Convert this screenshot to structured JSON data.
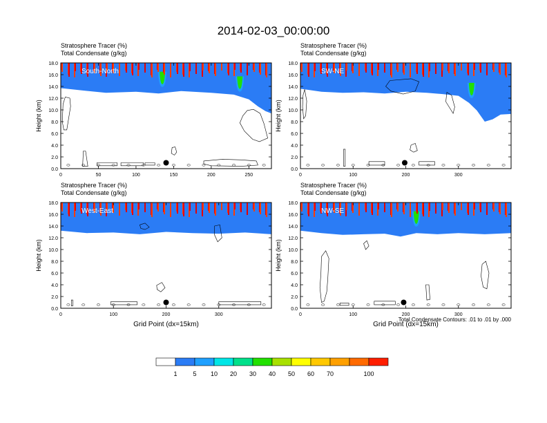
{
  "chart_data": {
    "title": "2014-02-03_00:00:00",
    "type": "heatmap",
    "footnote": "Total Condensate Contours: .01 to .01 by .000",
    "colorbar": {
      "colors": [
        "#ffffff",
        "#2b7cf5",
        "#1fa0ff",
        "#00e6e6",
        "#00e08a",
        "#22e000",
        "#a8e000",
        "#ffff00",
        "#ffc800",
        "#ffa000",
        "#ff6a00",
        "#ff1e00"
      ],
      "labels": [
        "1",
        "5",
        "10",
        "20",
        "30",
        "40",
        "50",
        "60",
        "70",
        "100"
      ]
    },
    "panels": [
      {
        "label": "South-North",
        "line1": "Stratosphere Tracer   (%)",
        "line2": "Total Condensate   (g/kg)",
        "ylabel": "Height (km)",
        "xlabel": "",
        "xmax": 280,
        "xticks": [
          0,
          50,
          100,
          150,
          200,
          250
        ],
        "yticks": [
          "0.0",
          "2.0",
          "4.0",
          "6.0",
          "8.0",
          "10.0",
          "12.0",
          "14.0",
          "16.0",
          "18.0"
        ],
        "marker_x": 140,
        "marker_y": 1.0,
        "tropopause": [
          [
            0,
            16.1
          ],
          [
            30,
            15.7
          ],
          [
            60,
            15.3
          ],
          [
            100,
            15.5
          ],
          [
            130,
            15.2
          ],
          [
            160,
            15.6
          ],
          [
            200,
            15.3
          ],
          [
            230,
            15.0
          ],
          [
            250,
            14.2
          ],
          [
            262,
            13.0
          ],
          [
            272,
            12.2
          ],
          [
            280,
            11.8
          ]
        ],
        "dips": [
          [
            135,
            13.9
          ],
          [
            238,
            13.1
          ]
        ],
        "cloud_loops": [
          [
            [
              30,
              3.0
            ],
            [
              29,
              0.4
            ],
            [
              36,
              0.4
            ],
            [
              33,
              3.0
            ]
          ],
          [
            [
              3,
              11.0
            ],
            [
              6,
              12.2
            ],
            [
              12,
              12.0
            ],
            [
              13,
              10.6
            ],
            [
              10,
              8.2
            ],
            [
              8,
              6.6
            ],
            [
              4,
              6.6
            ],
            [
              2,
              8.0
            ]
          ],
          [
            [
              248,
              9.9
            ],
            [
              256,
              10.1
            ],
            [
              265,
              9.4
            ],
            [
              270,
              7.7
            ],
            [
              275,
              5.2
            ],
            [
              264,
              4.6
            ],
            [
              255,
              5.0
            ],
            [
              244,
              6.4
            ],
            [
              238,
              7.8
            ],
            [
              242,
              9.0
            ]
          ],
          [
            [
              148,
              3.6
            ],
            [
              152,
              3.7
            ],
            [
              154,
              2.8
            ],
            [
              151,
              2.3
            ],
            [
              147,
              2.6
            ]
          ],
          [
            [
              190,
              1.3
            ],
            [
              215,
              1.6
            ],
            [
              240,
              1.5
            ],
            [
              260,
              1.3
            ],
            [
              262,
              0.6
            ],
            [
              240,
              0.4
            ],
            [
              200,
              0.5
            ],
            [
              190,
              0.8
            ]
          ],
          [
            [
              48,
              1.0
            ],
            [
              75,
              1.0
            ],
            [
              75,
              0.5
            ],
            [
              48,
              0.5
            ]
          ],
          [
            [
              80,
              1.0
            ],
            [
              110,
              1.0
            ],
            [
              110,
              0.5
            ],
            [
              80,
              0.5
            ]
          ],
          [
            [
              112,
              1.0
            ],
            [
              125,
              1.0
            ],
            [
              125,
              0.6
            ],
            [
              112,
              0.6
            ]
          ]
        ]
      },
      {
        "label": "SW-NE",
        "line1": "Stratosphere Tracer   (%)",
        "line2": "Total Condensate   (g/kg)",
        "ylabel": "Height (km)",
        "xlabel": "",
        "xmax": 400,
        "xticks": [
          0,
          100,
          200,
          300
        ],
        "yticks": [
          "0.0",
          "2.0",
          "4.0",
          "6.0",
          "8.0",
          "10.0",
          "12.0",
          "14.0",
          "16.0",
          "18.0"
        ],
        "marker_x": 198,
        "marker_y": 1.0,
        "tropopause": [
          [
            0,
            16.0
          ],
          [
            40,
            15.5
          ],
          [
            80,
            15.3
          ],
          [
            120,
            15.4
          ],
          [
            160,
            15.2
          ],
          [
            200,
            15.5
          ],
          [
            240,
            15.3
          ],
          [
            270,
            15.1
          ],
          [
            300,
            14.8
          ],
          [
            320,
            13.6
          ],
          [
            335,
            12.3
          ],
          [
            350,
            10.4
          ],
          [
            365,
            10.8
          ],
          [
            380,
            11.6
          ],
          [
            400,
            11.7
          ]
        ],
        "dips": [
          [
            325,
            12.0
          ]
        ],
        "cloud_loops": [
          [
            [
              170,
              15.0
            ],
            [
              210,
              15.3
            ],
            [
              225,
              14.8
            ],
            [
              218,
              13.2
            ],
            [
              195,
              12.7
            ],
            [
              172,
              13.2
            ],
            [
              162,
              14.0
            ]
          ],
          [
            [
              278,
              13.0
            ],
            [
              287,
              12.5
            ],
            [
              293,
              10.5
            ],
            [
              290,
              9.4
            ],
            [
              283,
              10.4
            ],
            [
              276,
              11.4
            ]
          ],
          [
            [
              5,
              12.5
            ],
            [
              8,
              13.5
            ],
            [
              12,
              11.5
            ],
            [
              10,
              9.0
            ],
            [
              6,
              8.5
            ],
            [
              4,
              10.5
            ]
          ],
          [
            [
              210,
              4.0
            ],
            [
              218,
              4.3
            ],
            [
              222,
              3.1
            ],
            [
              215,
              2.8
            ],
            [
              208,
              3.2
            ]
          ],
          [
            [
              130,
              1.2
            ],
            [
              160,
              1.2
            ],
            [
              160,
              0.6
            ],
            [
              130,
              0.6
            ]
          ],
          [
            [
              225,
              1.2
            ],
            [
              255,
              1.2
            ],
            [
              255,
              0.6
            ],
            [
              225,
              0.6
            ]
          ],
          [
            [
              82,
              3.3
            ],
            [
              85,
              3.3
            ],
            [
              85,
              0.4
            ],
            [
              82,
              0.4
            ]
          ]
        ]
      },
      {
        "label": "West-East",
        "line1": "Stratosphere Tracer   (%)",
        "line2": "Total Condensate   (g/kg)",
        "ylabel": "Height (km)",
        "xlabel": "Grid Point (dx=15km)",
        "xmax": 400,
        "xticks": [
          0,
          100,
          200,
          300
        ],
        "yticks": [
          "0.0",
          "2.0",
          "4.0",
          "6.0",
          "8.0",
          "10.0",
          "12.0",
          "14.0",
          "16.0",
          "18.0"
        ],
        "marker_x": 200,
        "marker_y": 1.0,
        "tropopause": [
          [
            0,
            15.6
          ],
          [
            50,
            15.2
          ],
          [
            100,
            15.3
          ],
          [
            150,
            15.0
          ],
          [
            200,
            15.4
          ],
          [
            250,
            15.2
          ],
          [
            300,
            15.1
          ],
          [
            350,
            15.3
          ],
          [
            400,
            15.0
          ]
        ],
        "dips": [],
        "cloud_loops": [
          [
            [
              150,
              14.2
            ],
            [
              160,
              14.5
            ],
            [
              168,
              13.8
            ],
            [
              160,
              13.4
            ],
            [
              152,
              13.6
            ]
          ],
          [
            [
              292,
              14.0
            ],
            [
              302,
              14.2
            ],
            [
              306,
              12.0
            ],
            [
              298,
              11.3
            ],
            [
              292,
              12.5
            ]
          ],
          [
            [
              182,
              3.9
            ],
            [
              192,
              4.4
            ],
            [
              198,
              3.5
            ],
            [
              190,
              2.8
            ],
            [
              183,
              3.2
            ]
          ],
          [
            [
              300,
              1.1
            ],
            [
              380,
              1.1
            ],
            [
              380,
              0.6
            ],
            [
              300,
              0.6
            ]
          ],
          [
            [
              95,
              1.1
            ],
            [
              145,
              1.1
            ],
            [
              145,
              0.6
            ],
            [
              95,
              0.6
            ]
          ],
          [
            [
              20,
              1.4
            ],
            [
              23,
              1.4
            ],
            [
              23,
              0.4
            ],
            [
              20,
              0.4
            ]
          ]
        ]
      },
      {
        "label": "NW-SE",
        "line1": "Stratosphere Tracer   (%)",
        "line2": "Total Condensate   (g/kg)",
        "ylabel": "Height (km)",
        "xlabel": "Grid Point (dx=15km)",
        "xmax": 400,
        "xticks": [
          0,
          100,
          200,
          300
        ],
        "yticks": [
          "0.0",
          "2.0",
          "4.0",
          "6.0",
          "8.0",
          "10.0",
          "12.0",
          "14.0",
          "16.0",
          "18.0"
        ],
        "marker_x": 196,
        "marker_y": 1.0,
        "tropopause": [
          [
            0,
            15.6
          ],
          [
            40,
            15.2
          ],
          [
            80,
            14.9
          ],
          [
            120,
            15.0
          ],
          [
            160,
            15.1
          ],
          [
            190,
            14.6
          ],
          [
            220,
            15.2
          ],
          [
            260,
            15.0
          ],
          [
            300,
            15.2
          ],
          [
            350,
            15.0
          ],
          [
            400,
            15.2
          ]
        ],
        "dips": [
          [
            220,
            13.9
          ]
        ],
        "cloud_loops": [
          [
            [
              40,
              8.8
            ],
            [
              48,
              9.8
            ],
            [
              54,
              8.5
            ],
            [
              52,
              5.0
            ],
            [
              50,
              2.8
            ],
            [
              45,
              1.2
            ],
            [
              40,
              1.0
            ],
            [
              37,
              3.5
            ],
            [
              39,
              6.0
            ]
          ],
          [
            [
              345,
              7.5
            ],
            [
              352,
              8.0
            ],
            [
              358,
              6.0
            ],
            [
              354,
              3.3
            ],
            [
              347,
              3.6
            ],
            [
              343,
              5.5
            ]
          ],
          [
            [
              120,
              11.0
            ],
            [
              126,
              11.5
            ],
            [
              130,
              10.6
            ],
            [
              124,
              10.0
            ]
          ],
          [
            [
              238,
              4.0
            ],
            [
              244,
              4.0
            ],
            [
              246,
              1.5
            ],
            [
              240,
              1.4
            ]
          ],
          [
            [
              140,
              1.2
            ],
            [
              180,
              1.2
            ],
            [
              180,
              0.6
            ],
            [
              140,
              0.6
            ]
          ],
          [
            [
              75,
              0.9
            ],
            [
              92,
              0.9
            ],
            [
              92,
              0.5
            ],
            [
              75,
              0.5
            ]
          ]
        ]
      }
    ]
  }
}
